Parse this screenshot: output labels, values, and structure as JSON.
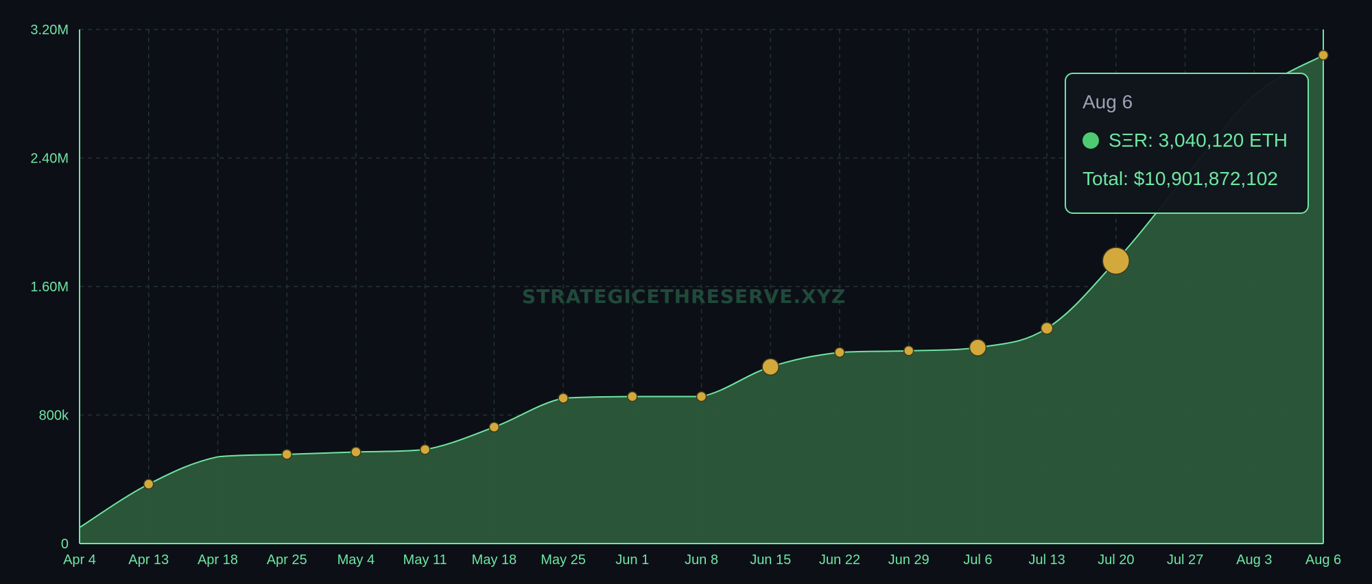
{
  "chart_data": {
    "type": "area",
    "x": [
      "Apr 4",
      "Apr 13",
      "Apr 18",
      "Apr 25",
      "May 4",
      "May 11",
      "May 18",
      "May 25",
      "Jun 1",
      "Jun 8",
      "Jun 15",
      "Jun 22",
      "Jun 29",
      "Jul 6",
      "Jul 13",
      "Jul 20",
      "Jul 27",
      "Aug 3",
      "Aug 6"
    ],
    "series": [
      {
        "name": "SΞR",
        "values": [
          100000,
          370000,
          540000,
          555000,
          570000,
          585000,
          725000,
          905000,
          915000,
          915000,
          1100000,
          1190000,
          1200000,
          1220000,
          1340000,
          1760000,
          2280000,
          2790000,
          3040120
        ],
        "markers": [
          false,
          true,
          false,
          true,
          true,
          true,
          true,
          true,
          true,
          true,
          true,
          true,
          true,
          true,
          true,
          true,
          false,
          false,
          true
        ],
        "marker_weight": [
          0,
          1,
          0,
          1,
          1,
          1,
          1,
          1,
          1,
          1,
          2,
          1,
          1,
          2,
          1.3,
          3.5,
          0,
          0,
          1
        ]
      }
    ],
    "y_ticks": [
      {
        "value": 0,
        "label": "0"
      },
      {
        "value": 800000,
        "label": "800k"
      },
      {
        "value": 1600000,
        "label": "1.60M"
      },
      {
        "value": 2400000,
        "label": "2.40M"
      },
      {
        "value": 3200000,
        "label": "3.20M"
      }
    ],
    "ylim": [
      0,
      3200000
    ],
    "grid": true,
    "watermark": "STRATEGICETHRESERVE.XYZ",
    "colors": {
      "background": "#0d0f17",
      "line": "#6ee7a2",
      "area": "#2d5a3a",
      "grid": "#22362c",
      "marker_fill": "#d4a93b",
      "marker_stroke": "#3a3a20",
      "tick_label": "#6ee7a2",
      "watermark": "#1f4a3a"
    }
  },
  "tooltip": {
    "date": "Aug 6",
    "series_label": "SΞR: 3,040,120 ETH",
    "total_label": "Total: $10,901,872,102",
    "dot_color": "#4ecb71"
  }
}
